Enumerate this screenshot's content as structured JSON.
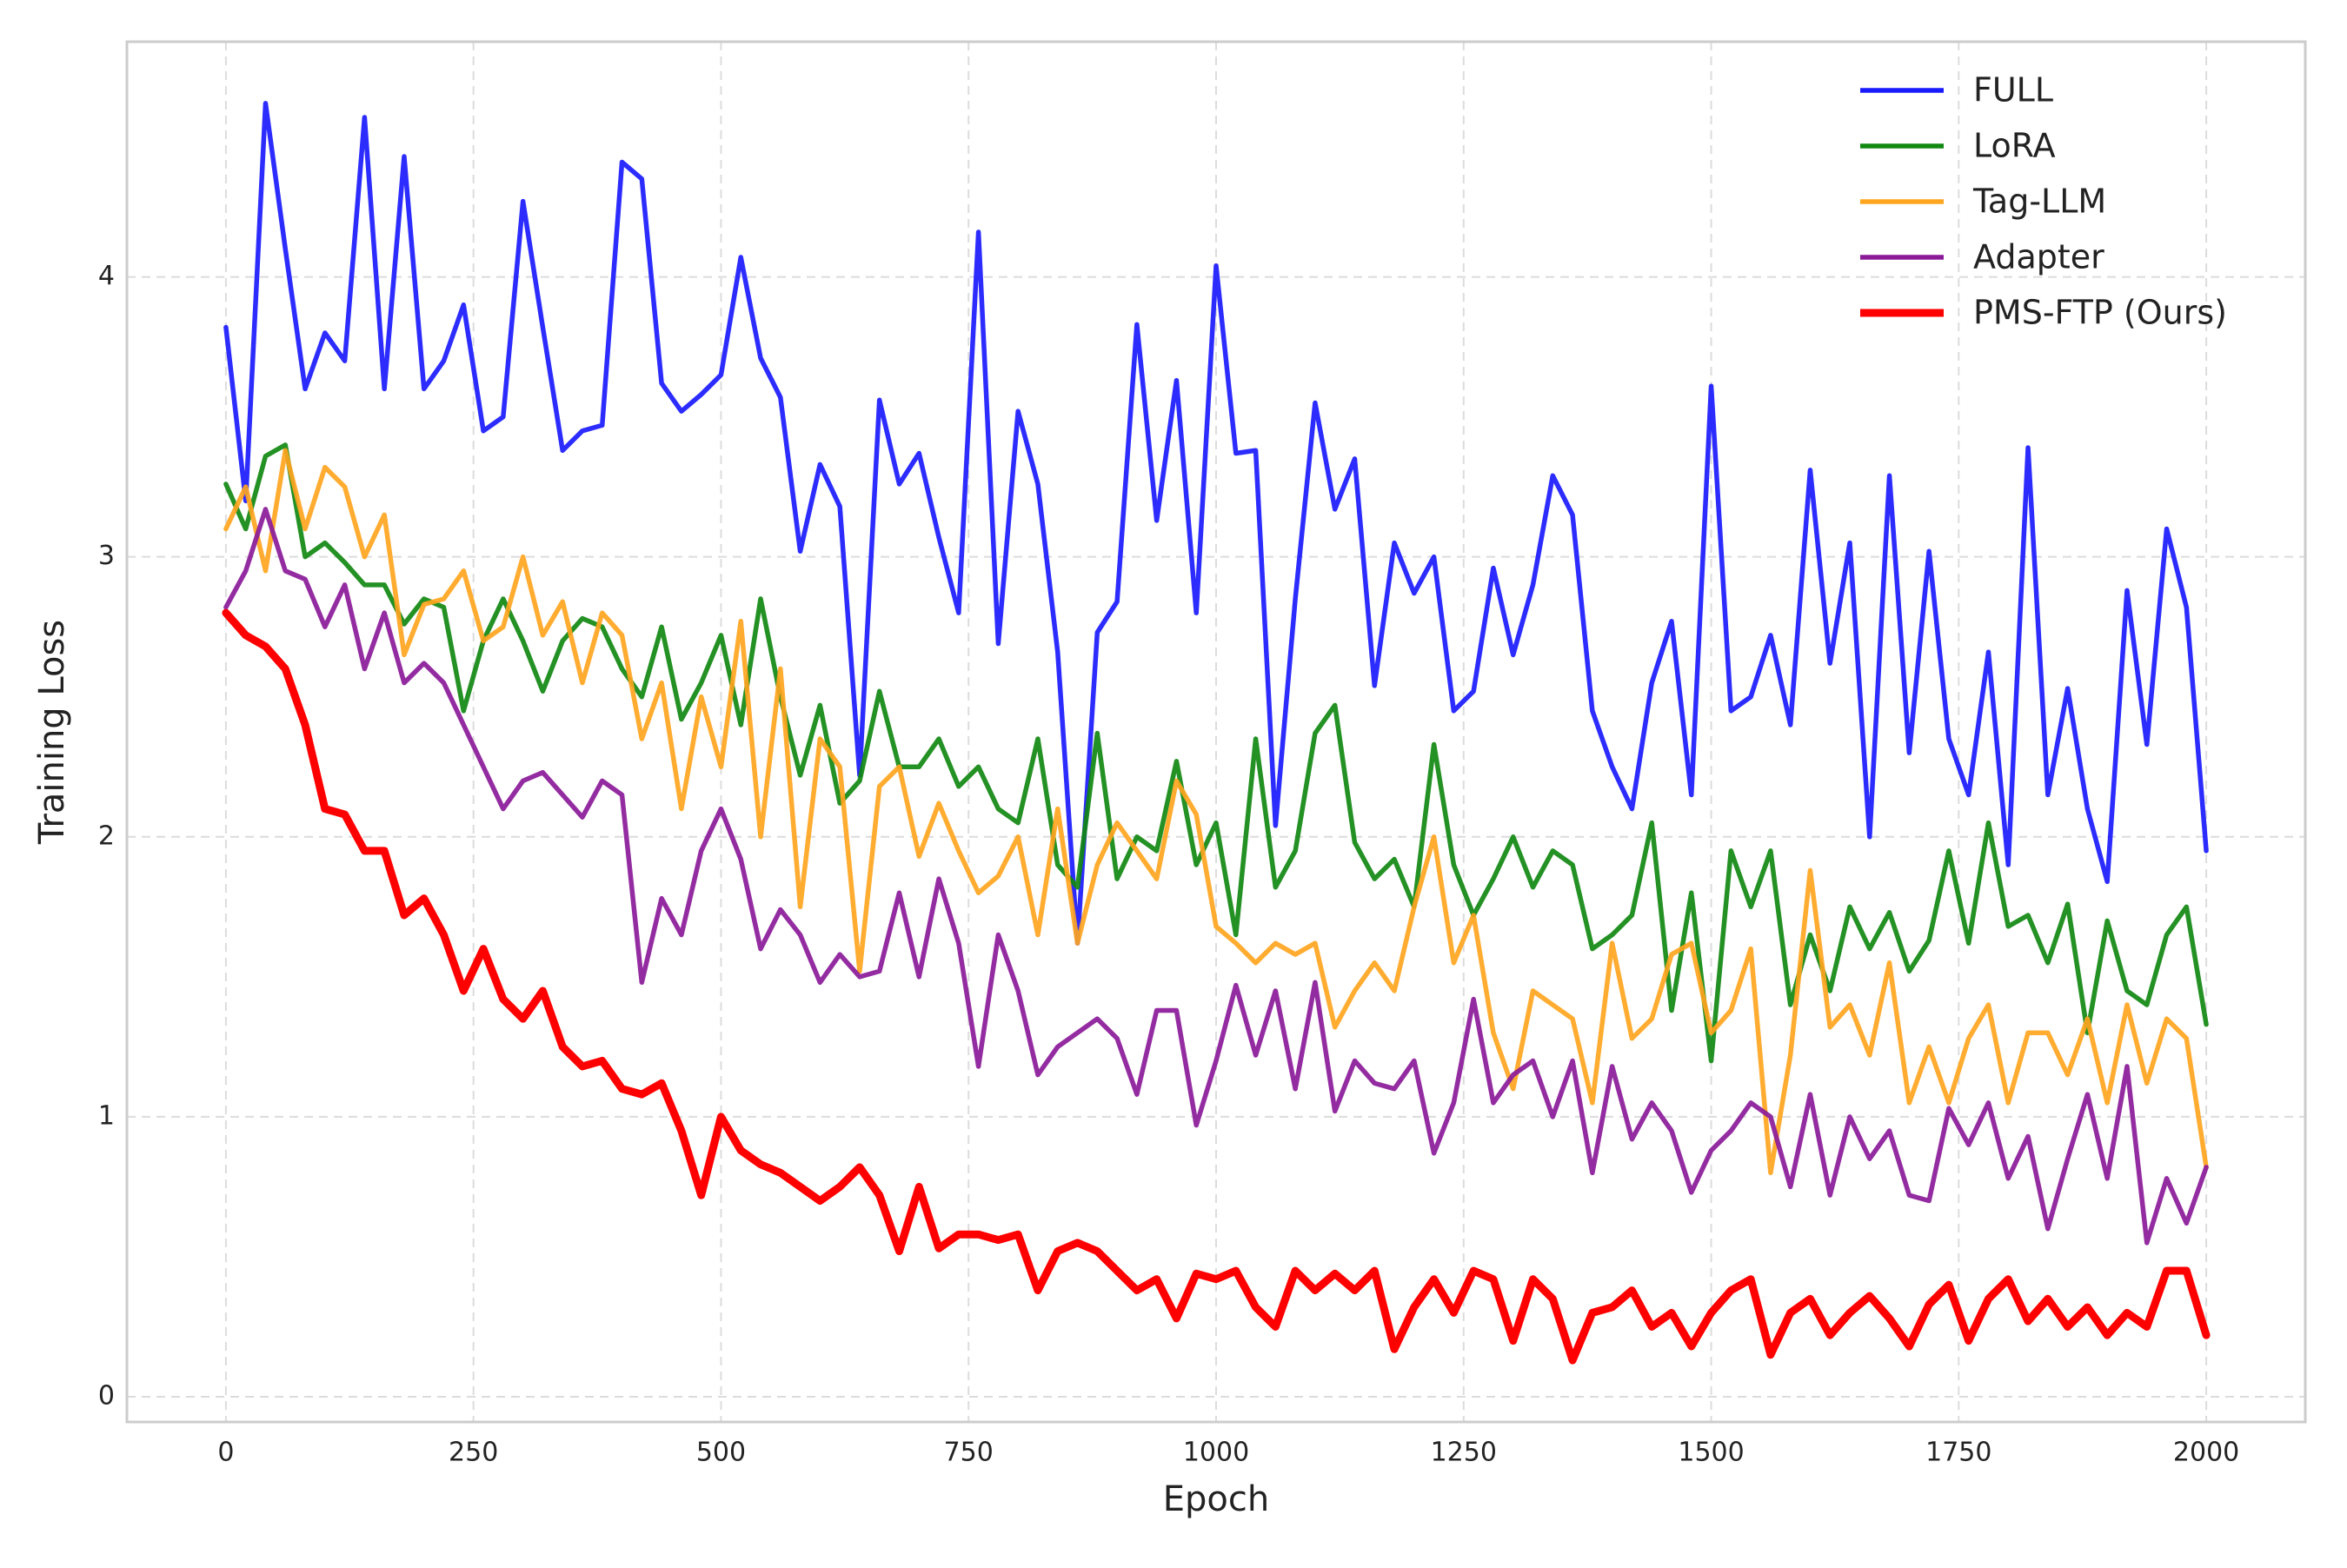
{
  "chart_data": {
    "type": "line",
    "xlabel": "Epoch",
    "ylabel": "Training Loss",
    "x": [
      0,
      20,
      40,
      60,
      80,
      100,
      120,
      140,
      160,
      180,
      200,
      220,
      240,
      260,
      280,
      300,
      320,
      340,
      360,
      380,
      400,
      420,
      440,
      460,
      480,
      500,
      520,
      540,
      560,
      580,
      600,
      620,
      640,
      660,
      680,
      700,
      720,
      740,
      760,
      780,
      800,
      820,
      840,
      860,
      880,
      900,
      920,
      940,
      960,
      980,
      1000,
      1020,
      1040,
      1060,
      1080,
      1100,
      1120,
      1140,
      1160,
      1180,
      1200,
      1220,
      1240,
      1260,
      1280,
      1300,
      1320,
      1340,
      1360,
      1380,
      1400,
      1420,
      1440,
      1460,
      1480,
      1500,
      1520,
      1540,
      1560,
      1580,
      1600,
      1620,
      1640,
      1660,
      1680,
      1700,
      1720,
      1740,
      1760,
      1780,
      1800,
      1820,
      1840,
      1860,
      1880,
      1900,
      1920,
      1940,
      1960,
      1980,
      2000
    ],
    "series": [
      {
        "name": "FULL",
        "color": "#1a1aff",
        "values": [
          3.82,
          3.2,
          4.62,
          4.1,
          3.6,
          3.8,
          3.7,
          4.57,
          3.6,
          4.43,
          3.6,
          3.7,
          3.9,
          3.45,
          3.5,
          4.27,
          3.82,
          3.38,
          3.45,
          3.47,
          4.41,
          4.35,
          3.62,
          3.52,
          3.58,
          3.65,
          4.07,
          3.71,
          3.57,
          3.02,
          3.33,
          3.18,
          2.22,
          3.56,
          3.26,
          3.37,
          3.07,
          2.8,
          4.16,
          2.69,
          3.52,
          3.26,
          2.66,
          1.62,
          2.73,
          2.84,
          3.83,
          3.13,
          3.63,
          2.8,
          4.04,
          3.37,
          3.38,
          2.04,
          2.85,
          3.55,
          3.17,
          3.35,
          2.54,
          3.05,
          2.87,
          3.0,
          2.45,
          2.52,
          2.96,
          2.65,
          2.9,
          3.29,
          3.15,
          2.45,
          2.25,
          2.1,
          2.55,
          2.77,
          2.15,
          3.61,
          2.45,
          2.5,
          2.72,
          2.4,
          3.31,
          2.62,
          3.05,
          2.0,
          3.29,
          2.3,
          3.02,
          2.35,
          2.15,
          2.66,
          1.9,
          3.39,
          2.15,
          2.53,
          2.1,
          1.84,
          2.88,
          2.33,
          3.1,
          2.82,
          1.95
        ]
      },
      {
        "name": "LoRA",
        "color": "#118811",
        "values": [
          3.26,
          3.1,
          3.36,
          3.4,
          3.0,
          3.05,
          2.98,
          2.9,
          2.9,
          2.76,
          2.85,
          2.82,
          2.45,
          2.7,
          2.85,
          2.7,
          2.52,
          2.7,
          2.78,
          2.75,
          2.6,
          2.5,
          2.75,
          2.42,
          2.55,
          2.72,
          2.4,
          2.85,
          2.5,
          2.22,
          2.47,
          2.12,
          2.2,
          2.52,
          2.25,
          2.25,
          2.35,
          2.18,
          2.25,
          2.1,
          2.05,
          2.35,
          1.9,
          1.82,
          2.37,
          1.85,
          2.0,
          1.95,
          2.27,
          1.9,
          2.05,
          1.65,
          2.35,
          1.82,
          1.95,
          2.37,
          2.47,
          1.98,
          1.85,
          1.92,
          1.75,
          2.33,
          1.9,
          1.72,
          1.85,
          2.0,
          1.82,
          1.95,
          1.9,
          1.6,
          1.65,
          1.72,
          2.05,
          1.38,
          1.8,
          1.2,
          1.95,
          1.75,
          1.95,
          1.4,
          1.65,
          1.45,
          1.75,
          1.6,
          1.73,
          1.52,
          1.63,
          1.95,
          1.62,
          2.05,
          1.68,
          1.72,
          1.55,
          1.76,
          1.3,
          1.7,
          1.45,
          1.4,
          1.65,
          1.75,
          1.33
        ]
      },
      {
        "name": "Tag-LLM",
        "color": "#ffa51f",
        "values": [
          3.1,
          3.25,
          2.95,
          3.38,
          3.1,
          3.32,
          3.25,
          3.0,
          3.15,
          2.65,
          2.83,
          2.85,
          2.95,
          2.7,
          2.75,
          3.0,
          2.72,
          2.84,
          2.55,
          2.8,
          2.72,
          2.35,
          2.55,
          2.1,
          2.5,
          2.25,
          2.77,
          2.0,
          2.6,
          1.75,
          2.35,
          2.25,
          1.52,
          2.18,
          2.25,
          1.93,
          2.12,
          1.95,
          1.8,
          1.86,
          2.0,
          1.65,
          2.1,
          1.62,
          1.9,
          2.05,
          1.95,
          1.85,
          2.2,
          2.08,
          1.68,
          1.62,
          1.55,
          1.62,
          1.58,
          1.62,
          1.32,
          1.45,
          1.55,
          1.45,
          1.75,
          2.0,
          1.55,
          1.72,
          1.3,
          1.1,
          1.45,
          1.4,
          1.35,
          1.05,
          1.62,
          1.28,
          1.35,
          1.58,
          1.62,
          1.3,
          1.38,
          1.6,
          0.8,
          1.22,
          1.88,
          1.32,
          1.4,
          1.22,
          1.55,
          1.05,
          1.25,
          1.05,
          1.28,
          1.4,
          1.05,
          1.3,
          1.3,
          1.15,
          1.35,
          1.05,
          1.4,
          1.12,
          1.35,
          1.28,
          0.82
        ]
      },
      {
        "name": "Adapter",
        "color": "#8b1a99",
        "values": [
          2.82,
          2.95,
          3.17,
          2.95,
          2.92,
          2.75,
          2.9,
          2.6,
          2.8,
          2.55,
          2.62,
          2.55,
          2.4,
          2.25,
          2.1,
          2.2,
          2.23,
          2.15,
          2.07,
          2.2,
          2.15,
          1.48,
          1.78,
          1.65,
          1.95,
          2.1,
          1.92,
          1.6,
          1.74,
          1.65,
          1.48,
          1.58,
          1.5,
          1.52,
          1.8,
          1.5,
          1.85,
          1.62,
          1.18,
          1.65,
          1.45,
          1.15,
          1.25,
          1.3,
          1.35,
          1.28,
          1.08,
          1.38,
          1.38,
          0.97,
          1.2,
          1.47,
          1.22,
          1.45,
          1.1,
          1.48,
          1.02,
          1.2,
          1.12,
          1.1,
          1.2,
          0.87,
          1.05,
          1.42,
          1.05,
          1.15,
          1.2,
          1.0,
          1.2,
          0.8,
          1.18,
          0.92,
          1.05,
          0.95,
          0.73,
          0.88,
          0.95,
          1.05,
          1.0,
          0.75,
          1.08,
          0.72,
          1.0,
          0.85,
          0.95,
          0.72,
          0.7,
          1.03,
          0.9,
          1.05,
          0.78,
          0.93,
          0.6,
          0.85,
          1.08,
          0.78,
          1.18,
          0.55,
          0.78,
          0.62,
          0.82
        ]
      },
      {
        "name": "PMS-FTP (Ours)",
        "color": "#ff0000",
        "values": [
          2.8,
          2.72,
          2.68,
          2.6,
          2.4,
          2.1,
          2.08,
          1.95,
          1.95,
          1.72,
          1.78,
          1.65,
          1.45,
          1.6,
          1.42,
          1.35,
          1.45,
          1.25,
          1.18,
          1.2,
          1.1,
          1.08,
          1.12,
          0.95,
          0.72,
          1.0,
          0.88,
          0.83,
          0.8,
          0.75,
          0.7,
          0.75,
          0.82,
          0.72,
          0.52,
          0.75,
          0.53,
          0.58,
          0.58,
          0.56,
          0.58,
          0.38,
          0.52,
          0.55,
          0.52,
          0.45,
          0.38,
          0.42,
          0.28,
          0.44,
          0.42,
          0.45,
          0.32,
          0.25,
          0.45,
          0.38,
          0.44,
          0.38,
          0.45,
          0.17,
          0.32,
          0.42,
          0.3,
          0.45,
          0.42,
          0.2,
          0.42,
          0.35,
          0.13,
          0.3,
          0.32,
          0.38,
          0.25,
          0.3,
          0.18,
          0.3,
          0.38,
          0.42,
          0.15,
          0.3,
          0.35,
          0.22,
          0.3,
          0.36,
          0.28,
          0.18,
          0.33,
          0.4,
          0.2,
          0.35,
          0.42,
          0.27,
          0.35,
          0.25,
          0.32,
          0.22,
          0.3,
          0.25,
          0.45,
          0.45,
          0.22
        ]
      }
    ],
    "xlim": [
      -100,
      2100
    ],
    "ylim": [
      -0.09,
      4.84
    ],
    "xticks": [
      0,
      250,
      500,
      750,
      1000,
      1250,
      1500,
      1750,
      2000
    ],
    "yticks": [
      0,
      1,
      2,
      3,
      4
    ],
    "grid": true,
    "legend": "upper right"
  }
}
